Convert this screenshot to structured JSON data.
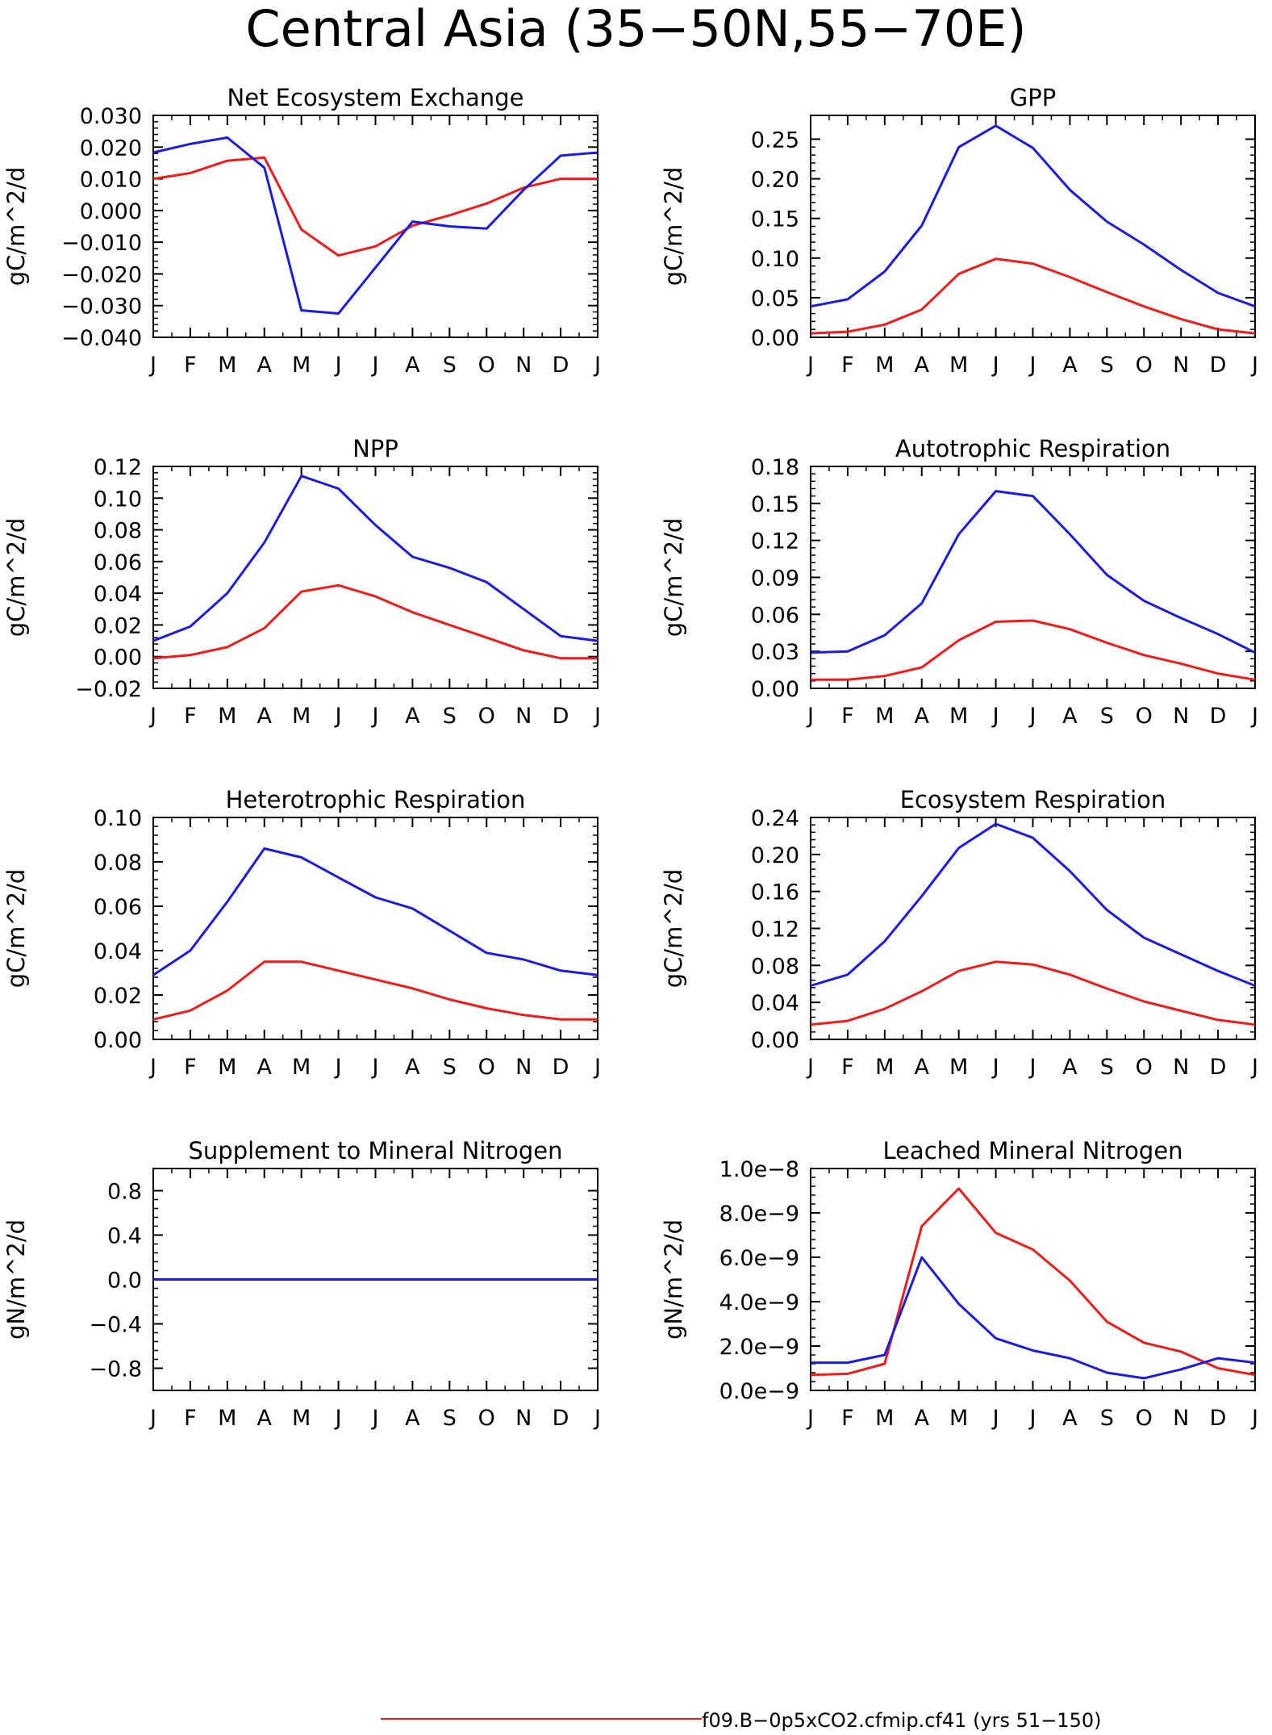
{
  "title": "Central Asia (35−50N,55−70E)",
  "colors": {
    "series_red": "#ee1c1c",
    "series_blue": "#1c1cdd"
  },
  "chart_data": [
    {
      "type": "line",
      "title": "Net Ecosystem Exchange",
      "ylabel": "gC/m^2/d",
      "x": [
        "J",
        "F",
        "M",
        "A",
        "M",
        "J",
        "J",
        "A",
        "S",
        "O",
        "N",
        "D",
        "J"
      ],
      "ylim": [
        -0.04,
        0.03
      ],
      "yticks": [
        "0.030",
        "0.020",
        "0.010",
        "0.000",
        "−0.010",
        "−0.020",
        "−0.030",
        "−0.040"
      ],
      "series": [
        {
          "color": "red",
          "values": [
            0.01,
            0.0118,
            0.0157,
            0.0167,
            -0.006,
            -0.0142,
            -0.0113,
            -0.0048,
            -0.0015,
            0.0022,
            0.0072,
            0.01,
            0.01
          ]
        },
        {
          "color": "blue",
          "values": [
            0.0183,
            0.021,
            0.023,
            0.0135,
            -0.0315,
            -0.0325,
            -0.018,
            -0.0035,
            -0.005,
            -0.0057,
            0.0065,
            0.0173,
            0.0183
          ]
        }
      ]
    },
    {
      "type": "line",
      "title": "GPP",
      "ylabel": "gC/m^2/d",
      "x": [
        "J",
        "F",
        "M",
        "A",
        "M",
        "J",
        "J",
        "A",
        "S",
        "O",
        "N",
        "D",
        "J"
      ],
      "ylim": [
        0,
        0.28
      ],
      "yticks": [
        "0.25",
        "0.20",
        "0.15",
        "0.10",
        "0.05",
        "0.00"
      ],
      "series": [
        {
          "color": "red",
          "values": [
            0.005,
            0.007,
            0.016,
            0.035,
            0.08,
            0.099,
            0.093,
            0.076,
            0.057,
            0.039,
            0.023,
            0.01,
            0.005
          ]
        },
        {
          "color": "blue",
          "values": [
            0.039,
            0.048,
            0.083,
            0.141,
            0.24,
            0.267,
            0.239,
            0.186,
            0.146,
            0.117,
            0.085,
            0.056,
            0.039
          ]
        }
      ]
    },
    {
      "type": "line",
      "title": "NPP",
      "ylabel": "gC/m^2/d",
      "x": [
        "J",
        "F",
        "M",
        "A",
        "M",
        "J",
        "J",
        "A",
        "S",
        "O",
        "N",
        "D",
        "J"
      ],
      "ylim": [
        -0.02,
        0.12
      ],
      "yticks": [
        "0.12",
        "0.10",
        "0.08",
        "0.06",
        "0.04",
        "0.02",
        "0.00",
        "−0.02"
      ],
      "series": [
        {
          "color": "red",
          "values": [
            -0.001,
            0.001,
            0.006,
            0.018,
            0.041,
            0.045,
            0.038,
            0.028,
            0.02,
            0.012,
            0.004,
            -0.001,
            -0.001
          ]
        },
        {
          "color": "blue",
          "values": [
            0.01,
            0.019,
            0.04,
            0.072,
            0.114,
            0.106,
            0.083,
            0.063,
            0.056,
            0.047,
            0.03,
            0.013,
            0.01
          ]
        }
      ]
    },
    {
      "type": "line",
      "title": "Autotrophic Respiration",
      "ylabel": "gC/m^2/d",
      "x": [
        "J",
        "F",
        "M",
        "A",
        "M",
        "J",
        "J",
        "A",
        "S",
        "O",
        "N",
        "D",
        "J"
      ],
      "ylim": [
        0,
        0.18
      ],
      "yticks": [
        "0.18",
        "0.15",
        "0.12",
        "0.09",
        "0.06",
        "0.03",
        "0.00"
      ],
      "series": [
        {
          "color": "red",
          "values": [
            0.007,
            0.007,
            0.01,
            0.017,
            0.039,
            0.054,
            0.055,
            0.048,
            0.037,
            0.027,
            0.02,
            0.012,
            0.007
          ]
        },
        {
          "color": "blue",
          "values": [
            0.029,
            0.03,
            0.043,
            0.069,
            0.125,
            0.16,
            0.156,
            0.125,
            0.092,
            0.071,
            0.057,
            0.044,
            0.029
          ]
        }
      ]
    },
    {
      "type": "line",
      "title": "Heterotrophic Respiration",
      "ylabel": "gC/m^2/d",
      "x": [
        "J",
        "F",
        "M",
        "A",
        "M",
        "J",
        "J",
        "A",
        "S",
        "O",
        "N",
        "D",
        "J"
      ],
      "ylim": [
        0,
        0.1
      ],
      "yticks": [
        "0.10",
        "0.08",
        "0.06",
        "0.04",
        "0.02",
        "0.00"
      ],
      "series": [
        {
          "color": "red",
          "values": [
            0.009,
            0.013,
            0.022,
            0.035,
            0.035,
            0.031,
            0.027,
            0.023,
            0.018,
            0.014,
            0.011,
            0.009,
            0.009
          ]
        },
        {
          "color": "blue",
          "values": [
            0.029,
            0.04,
            0.062,
            0.086,
            0.082,
            0.073,
            0.064,
            0.059,
            0.049,
            0.039,
            0.036,
            0.031,
            0.029
          ]
        }
      ]
    },
    {
      "type": "line",
      "title": "Ecosystem Respiration",
      "ylabel": "gC/m^2/d",
      "x": [
        "J",
        "F",
        "M",
        "A",
        "M",
        "J",
        "J",
        "A",
        "S",
        "O",
        "N",
        "D",
        "J"
      ],
      "ylim": [
        0,
        0.24
      ],
      "yticks": [
        "0.24",
        "0.20",
        "0.16",
        "0.12",
        "0.08",
        "0.04",
        "0.00"
      ],
      "series": [
        {
          "color": "red",
          "values": [
            0.016,
            0.02,
            0.033,
            0.052,
            0.074,
            0.084,
            0.081,
            0.07,
            0.055,
            0.041,
            0.031,
            0.021,
            0.016
          ]
        },
        {
          "color": "blue",
          "values": [
            0.058,
            0.07,
            0.106,
            0.155,
            0.207,
            0.233,
            0.218,
            0.182,
            0.14,
            0.11,
            0.092,
            0.074,
            0.058
          ]
        }
      ]
    },
    {
      "type": "line",
      "title": "Supplement to Mineral Nitrogen",
      "ylabel": "gN/m^2/d",
      "x": [
        "J",
        "F",
        "M",
        "A",
        "M",
        "J",
        "J",
        "A",
        "S",
        "O",
        "N",
        "D",
        "J"
      ],
      "ylim": [
        -1.0,
        1.0
      ],
      "yticks": [
        "0.8",
        "0.4",
        "0.0",
        "−0.4",
        "−0.8"
      ],
      "series": [
        {
          "color": "red",
          "values": [
            0,
            0,
            0,
            0,
            0,
            0,
            0,
            0,
            0,
            0,
            0,
            0,
            0
          ]
        },
        {
          "color": "blue",
          "values": [
            0,
            0,
            0,
            0,
            0,
            0,
            0,
            0,
            0,
            0,
            0,
            0,
            0
          ]
        }
      ]
    },
    {
      "type": "line",
      "title": "Leached Mineral Nitrogen",
      "ylabel": "gN/m^2/d",
      "x": [
        "J",
        "F",
        "M",
        "A",
        "M",
        "J",
        "J",
        "A",
        "S",
        "O",
        "N",
        "D",
        "J"
      ],
      "ylim": [
        0,
        1e-08
      ],
      "yticks": [
        "1.0e−8",
        "8.0e−9",
        "6.0e−9",
        "4.0e−9",
        "2.0e−9",
        "0.0e−9"
      ],
      "series": [
        {
          "color": "red",
          "values": [
            7e-10,
            7.5e-10,
            1.2e-09,
            7.4e-09,
            9.1e-09,
            7.1e-09,
            6.35e-09,
            4.95e-09,
            3.1e-09,
            2.15e-09,
            1.75e-09,
            1e-09,
            7e-10
          ]
        },
        {
          "color": "blue",
          "values": [
            1.25e-09,
            1.25e-09,
            1.6e-09,
            6e-09,
            3.9e-09,
            2.35e-09,
            1.8e-09,
            1.45e-09,
            8e-10,
            5.5e-10,
            9.5e-10,
            1.45e-09,
            1.25e-09
          ]
        }
      ]
    }
  ],
  "legend": [
    {
      "color": "red",
      "label": "f09.B−0p5xCO2.cfmip.cf41 (yrs 51−150)"
    }
  ]
}
